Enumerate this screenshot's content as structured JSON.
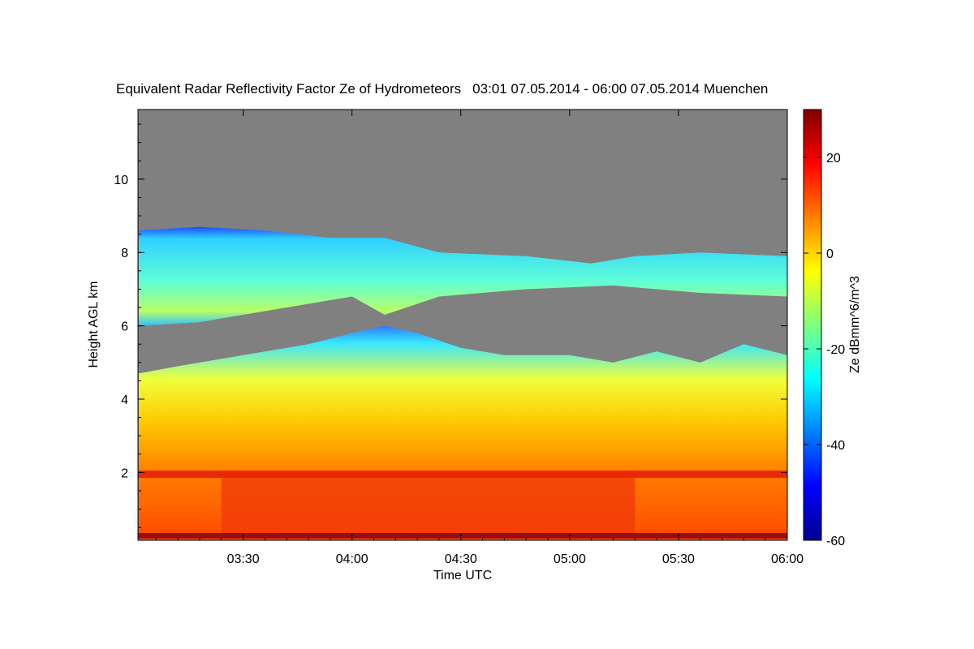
{
  "chart_data": {
    "type": "heatmap",
    "title": "Equivalent Radar Reflectivity Factor Ze of Hydrometeors",
    "time_range": "03:01 07.05.2014 - 06:00 07.05.2014",
    "location": "Muenchen",
    "xlabel": "Time UTC",
    "ylabel": "Height AGL km",
    "x_hours": [
      3.0167,
      6.0
    ],
    "x_ticks": [
      {
        "label": "03:30",
        "value": 3.5
      },
      {
        "label": "04:00",
        "value": 4.0
      },
      {
        "label": "04:30",
        "value": 4.5
      },
      {
        "label": "05:00",
        "value": 5.0
      },
      {
        "label": "05:30",
        "value": 5.5
      },
      {
        "label": "06:00",
        "value": 6.0
      }
    ],
    "ylim": [
      0.15,
      11.9
    ],
    "y_ticks": [
      {
        "label": "2",
        "value": 2
      },
      {
        "label": "4",
        "value": 4
      },
      {
        "label": "6",
        "value": 6
      },
      {
        "label": "8",
        "value": 8
      },
      {
        "label": "10",
        "value": 10
      }
    ],
    "colorbar": {
      "label": "Ze dBmm^6/m^3",
      "range": [
        -60,
        30
      ],
      "ticks": [
        {
          "label": "20",
          "value": 20
        },
        {
          "label": "0",
          "value": 0
        },
        {
          "label": "-20",
          "value": -20
        },
        {
          "label": "-40",
          "value": -40
        },
        {
          "label": "-60",
          "value": -60
        }
      ],
      "colormap": "jet"
    },
    "no_signal_color": "#808080",
    "layers": {
      "lower_cloud_top_km": [
        [
          3.02,
          4.7
        ],
        [
          3.2,
          4.9
        ],
        [
          3.5,
          5.2
        ],
        [
          3.8,
          5.5
        ],
        [
          4.0,
          5.8
        ],
        [
          4.15,
          6.0
        ],
        [
          4.3,
          5.8
        ],
        [
          4.5,
          5.4
        ],
        [
          4.7,
          5.2
        ],
        [
          5.0,
          5.2
        ],
        [
          5.2,
          5.0
        ],
        [
          5.4,
          5.3
        ],
        [
          5.6,
          5.0
        ],
        [
          5.8,
          5.5
        ],
        [
          6.0,
          5.2
        ]
      ],
      "upper_cloud_base_km": [
        [
          3.02,
          6.0
        ],
        [
          3.3,
          6.1
        ],
        [
          3.6,
          6.4
        ],
        [
          3.8,
          6.6
        ],
        [
          4.0,
          6.8
        ],
        [
          4.15,
          6.3
        ],
        [
          4.4,
          6.8
        ],
        [
          4.8,
          7.0
        ],
        [
          5.2,
          7.1
        ],
        [
          5.6,
          6.9
        ],
        [
          6.0,
          6.8
        ]
      ],
      "upper_cloud_top_km": [
        [
          3.02,
          8.6
        ],
        [
          3.3,
          8.7
        ],
        [
          3.6,
          8.6
        ],
        [
          3.9,
          8.4
        ],
        [
          4.15,
          8.4
        ],
        [
          4.4,
          8.0
        ],
        [
          4.8,
          7.9
        ],
        [
          5.1,
          7.7
        ],
        [
          5.3,
          7.9
        ],
        [
          5.6,
          8.0
        ],
        [
          6.0,
          7.9
        ]
      ],
      "bright_band_km": [
        1.85,
        2.05
      ],
      "ground_clutter_km": [
        0.2,
        0.35
      ]
    }
  }
}
